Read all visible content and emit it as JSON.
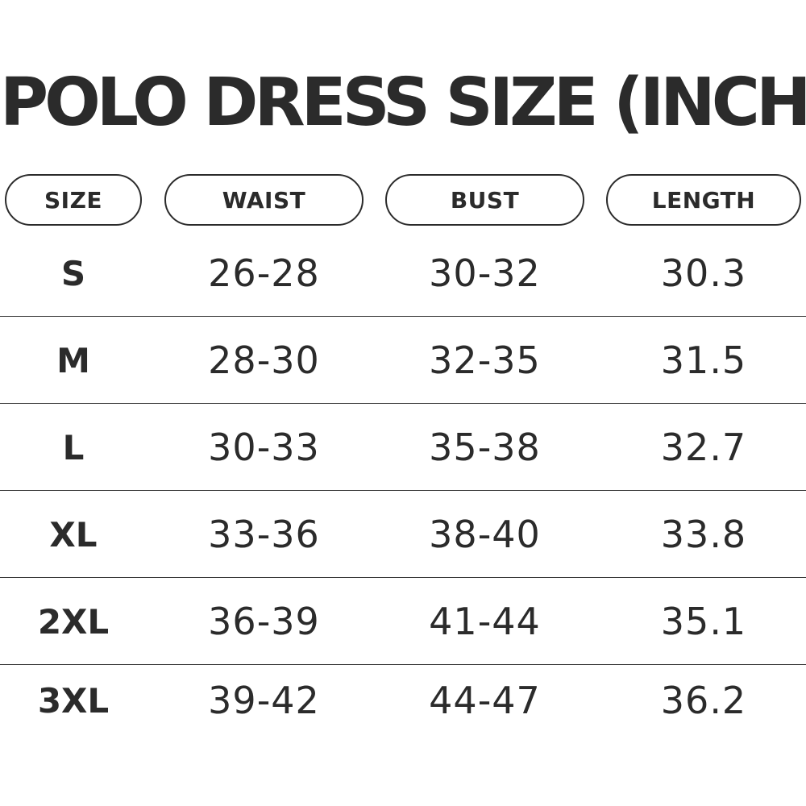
{
  "title": "POLO DRESS SIZE (INCH)",
  "headers": [
    "SIZE",
    "WAIST",
    "BUST",
    "LENGTH"
  ],
  "rows": [
    {
      "size": "S",
      "waist": "26-28",
      "bust": "30-32",
      "length": "30.3"
    },
    {
      "size": "M",
      "waist": "28-30",
      "bust": "32-35",
      "length": "31.5"
    },
    {
      "size": "L",
      "waist": "30-33",
      "bust": "35-38",
      "length": "32.7"
    },
    {
      "size": "XL",
      "waist": "33-36",
      "bust": "38-40",
      "length": "33.8"
    },
    {
      "size": "2XL",
      "waist": "36-39",
      "bust": "41-44",
      "length": "35.1"
    },
    {
      "size": "3XL",
      "waist": "39-42",
      "bust": "44-47",
      "length": "36.2"
    }
  ],
  "colors": {
    "text": "#2b2b2b",
    "background": "#ffffff",
    "divider": "#3a3a3a"
  }
}
